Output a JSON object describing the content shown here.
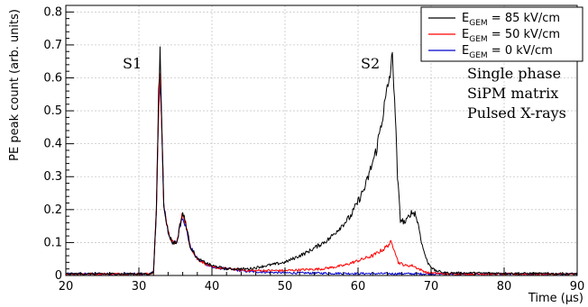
{
  "chart_data": {
    "type": "line",
    "xlabel": "Time (μs)",
    "ylabel": "PE peak count (arb. units)",
    "xlim": [
      20,
      90
    ],
    "ylim": [
      0,
      0.82
    ],
    "x_ticks": [
      "20",
      "30",
      "40",
      "50",
      "60",
      "70",
      "80",
      "90"
    ],
    "y_ticks": [
      "0",
      "0.1",
      "0.2",
      "0.3",
      "0.4",
      "0.5",
      "0.6",
      "0.7",
      "0.8"
    ],
    "grid": true,
    "legend_position": "top-right",
    "legend": [
      {
        "base": "E",
        "sub": "GEM",
        "rest": " = 85 kV/cm",
        "color": "#000000"
      },
      {
        "base": "E",
        "sub": "GEM",
        "rest": " = 50 kV/cm",
        "color": "#ff0000"
      },
      {
        "base": "E",
        "sub": "GEM",
        "rest": " = 0 kV/cm",
        "color": "#0000cc"
      }
    ],
    "annotations": {
      "s1": "S1",
      "s2": "S2",
      "info": [
        "Single phase",
        "SiPM matrix",
        "Pulsed X-rays"
      ]
    },
    "series": [
      {
        "key": "e85",
        "color": "#000000",
        "points": [
          [
            20,
            0.005
          ],
          [
            31.5,
            0.005
          ],
          [
            32.0,
            0.01
          ],
          [
            32.4,
            0.2
          ],
          [
            32.7,
            0.55
          ],
          [
            32.9,
            0.68
          ],
          [
            33.1,
            0.5
          ],
          [
            33.4,
            0.22
          ],
          [
            34.0,
            0.13
          ],
          [
            34.6,
            0.1
          ],
          [
            35.2,
            0.1
          ],
          [
            35.6,
            0.15
          ],
          [
            36.0,
            0.19
          ],
          [
            36.4,
            0.16
          ],
          [
            37.0,
            0.09
          ],
          [
            38.0,
            0.05
          ],
          [
            40.0,
            0.03
          ],
          [
            42.0,
            0.02
          ],
          [
            45.0,
            0.02
          ],
          [
            50.0,
            0.04
          ],
          [
            53.0,
            0.07
          ],
          [
            56.0,
            0.11
          ],
          [
            59.0,
            0.18
          ],
          [
            61.0,
            0.27
          ],
          [
            62.5,
            0.38
          ],
          [
            63.5,
            0.5
          ],
          [
            64.3,
            0.6
          ],
          [
            64.7,
            0.66
          ],
          [
            65.0,
            0.55
          ],
          [
            65.4,
            0.3
          ],
          [
            65.8,
            0.17
          ],
          [
            66.5,
            0.16
          ],
          [
            67.2,
            0.19
          ],
          [
            67.8,
            0.19
          ],
          [
            68.3,
            0.15
          ],
          [
            68.8,
            0.09
          ],
          [
            69.5,
            0.04
          ],
          [
            70.5,
            0.015
          ],
          [
            72.0,
            0.008
          ],
          [
            90,
            0.005
          ]
        ]
      },
      {
        "key": "e50",
        "color": "#ff0000",
        "points": [
          [
            20,
            0.005
          ],
          [
            31.5,
            0.005
          ],
          [
            32.0,
            0.01
          ],
          [
            32.4,
            0.2
          ],
          [
            32.7,
            0.5
          ],
          [
            32.9,
            0.62
          ],
          [
            33.1,
            0.48
          ],
          [
            33.4,
            0.22
          ],
          [
            34.0,
            0.13
          ],
          [
            34.6,
            0.1
          ],
          [
            35.2,
            0.1
          ],
          [
            35.6,
            0.15
          ],
          [
            36.0,
            0.19
          ],
          [
            36.4,
            0.16
          ],
          [
            37.0,
            0.09
          ],
          [
            38.0,
            0.05
          ],
          [
            40.0,
            0.025
          ],
          [
            45.0,
            0.015
          ],
          [
            50.0,
            0.015
          ],
          [
            55.0,
            0.02
          ],
          [
            58.0,
            0.03
          ],
          [
            60.0,
            0.045
          ],
          [
            62.0,
            0.06
          ],
          [
            63.5,
            0.08
          ],
          [
            64.5,
            0.1
          ],
          [
            65.0,
            0.08
          ],
          [
            65.5,
            0.04
          ],
          [
            66.5,
            0.03
          ],
          [
            67.5,
            0.03
          ],
          [
            68.3,
            0.02
          ],
          [
            69.5,
            0.008
          ],
          [
            72.0,
            0.005
          ],
          [
            90,
            0.004
          ]
        ]
      },
      {
        "key": "e0",
        "color": "#0000cc",
        "points": [
          [
            20,
            0.005
          ],
          [
            31.5,
            0.005
          ],
          [
            32.0,
            0.01
          ],
          [
            32.4,
            0.2
          ],
          [
            32.7,
            0.5
          ],
          [
            32.9,
            0.58
          ],
          [
            33.1,
            0.46
          ],
          [
            33.4,
            0.22
          ],
          [
            34.0,
            0.13
          ],
          [
            34.6,
            0.1
          ],
          [
            35.2,
            0.1
          ],
          [
            35.6,
            0.15
          ],
          [
            36.0,
            0.18
          ],
          [
            36.4,
            0.15
          ],
          [
            37.0,
            0.09
          ],
          [
            38.0,
            0.05
          ],
          [
            40.0,
            0.025
          ],
          [
            45.0,
            0.012
          ],
          [
            50.0,
            0.008
          ],
          [
            60.0,
            0.006
          ],
          [
            70.0,
            0.005
          ],
          [
            90,
            0.004
          ]
        ]
      }
    ]
  }
}
